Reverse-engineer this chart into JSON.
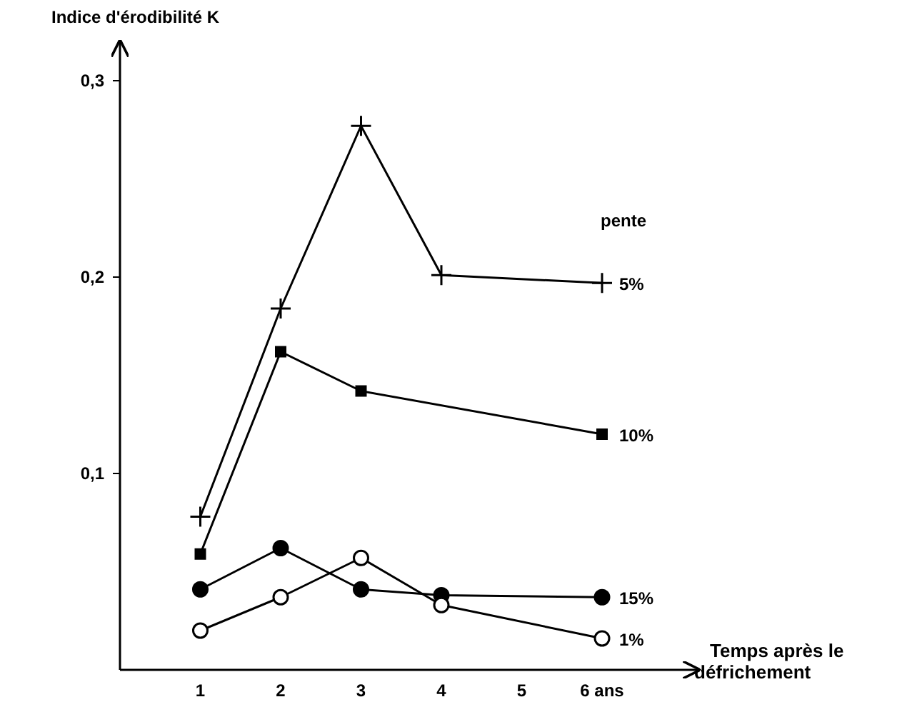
{
  "chart_data": {
    "type": "line",
    "ylabel": "Indice d'érodibilité K",
    "xlabel": "Temps après le défrichement",
    "legend_title": "pente",
    "xlim": [
      0,
      7.2
    ],
    "xticks": [
      1,
      2,
      3,
      4,
      5,
      {
        "value": 6,
        "label": "6 ans"
      }
    ],
    "ylim": [
      0,
      0.32
    ],
    "yticks": [
      {
        "value": 0.1,
        "label": "0,1"
      },
      {
        "value": 0.2,
        "label": "0,2"
      },
      {
        "value": 0.3,
        "label": "0,3"
      }
    ],
    "grid": false,
    "series": [
      {
        "name": "5%",
        "color": "#000000",
        "marker": "cross",
        "x": [
          1,
          2,
          3,
          4,
          6
        ],
        "values": [
          0.078,
          0.184,
          0.277,
          0.201,
          0.197
        ]
      },
      {
        "name": "10%",
        "color": "#000000",
        "marker": "square",
        "x": [
          1,
          2,
          3,
          6
        ],
        "values": [
          0.059,
          0.162,
          0.142,
          0.12
        ]
      },
      {
        "name": "15%",
        "color": "#000000",
        "marker": "circle",
        "x": [
          1,
          2,
          3,
          4,
          6
        ],
        "values": [
          0.041,
          0.062,
          0.041,
          0.038,
          0.037
        ]
      },
      {
        "name": "1%",
        "color": "#000000",
        "marker": "circle",
        "x": [
          1,
          2,
          3,
          4,
          6
        ],
        "values": [
          0.02,
          0.037,
          0.057,
          0.033,
          0.016
        ]
      }
    ]
  }
}
